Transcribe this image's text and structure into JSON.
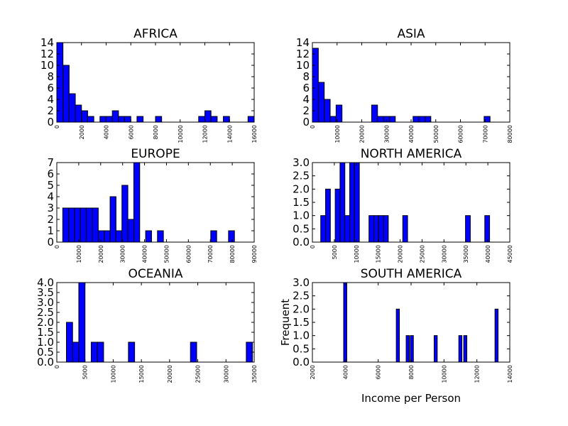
{
  "colors": {
    "bar": "#0000ff",
    "edge": "#000000",
    "background": "#ffffff"
  },
  "chart_data": [
    {
      "type": "bar",
      "title": "AFRICA",
      "xlim": [
        0,
        16000
      ],
      "ylim": [
        0,
        14
      ],
      "xticks": [
        0,
        2000,
        4000,
        6000,
        8000,
        10000,
        12000,
        14000,
        16000
      ],
      "yticks": [
        0,
        2,
        4,
        6,
        8,
        10,
        12,
        14
      ],
      "bin_width": 500,
      "bins": [
        [
          0,
          14
        ],
        [
          500,
          10
        ],
        [
          1000,
          5
        ],
        [
          1500,
          3
        ],
        [
          2000,
          2
        ],
        [
          2500,
          1
        ],
        [
          3500,
          1
        ],
        [
          4000,
          1
        ],
        [
          4500,
          2
        ],
        [
          5000,
          1
        ],
        [
          5500,
          1
        ],
        [
          6500,
          1
        ],
        [
          8000,
          1
        ],
        [
          11500,
          1
        ],
        [
          12000,
          2
        ],
        [
          12500,
          1
        ],
        [
          13500,
          1
        ],
        [
          15500,
          1
        ]
      ],
      "xlabel": "",
      "ylabel": "",
      "grid": false
    },
    {
      "type": "bar",
      "title": "ASIA",
      "xlim": [
        0,
        80000
      ],
      "ylim": [
        0,
        14
      ],
      "xticks": [
        0,
        10000,
        20000,
        30000,
        40000,
        50000,
        60000,
        70000,
        80000
      ],
      "yticks": [
        0,
        2,
        4,
        6,
        8,
        10,
        12,
        14
      ],
      "bin_width": 2400,
      "bins": [
        [
          0,
          13
        ],
        [
          2400,
          7
        ],
        [
          4800,
          4
        ],
        [
          7200,
          1
        ],
        [
          9600,
          3
        ],
        [
          24000,
          3
        ],
        [
          26400,
          1
        ],
        [
          28800,
          1
        ],
        [
          31200,
          1
        ],
        [
          40800,
          1
        ],
        [
          43200,
          1
        ],
        [
          45600,
          1
        ],
        [
          69600,
          1
        ]
      ],
      "xlabel": "",
      "ylabel": "",
      "grid": false
    },
    {
      "type": "bar",
      "title": "EUROPE",
      "xlim": [
        0,
        90000
      ],
      "ylim": [
        0,
        7
      ],
      "xticks": [
        0,
        10000,
        20000,
        30000,
        40000,
        50000,
        60000,
        70000,
        80000,
        90000
      ],
      "yticks": [
        0,
        1,
        2,
        3,
        4,
        5,
        6,
        7
      ],
      "bin_width": 2700,
      "bins": [
        [
          2700,
          3
        ],
        [
          5400,
          3
        ],
        [
          8100,
          3
        ],
        [
          10800,
          3
        ],
        [
          13500,
          3
        ],
        [
          16200,
          3
        ],
        [
          18900,
          1
        ],
        [
          21600,
          1
        ],
        [
          24300,
          4
        ],
        [
          27000,
          1
        ],
        [
          29700,
          5
        ],
        [
          32400,
          2
        ],
        [
          35100,
          7
        ],
        [
          40500,
          1
        ],
        [
          45900,
          1
        ],
        [
          70200,
          1
        ],
        [
          78300,
          1
        ]
      ],
      "xlabel": "",
      "ylabel": "",
      "grid": false
    },
    {
      "type": "bar",
      "title": "NORTH AMERICA",
      "xlim": [
        0,
        45000
      ],
      "ylim": [
        0,
        3
      ],
      "xticks": [
        0,
        5000,
        10000,
        15000,
        20000,
        25000,
        30000,
        35000,
        40000,
        45000
      ],
      "yticks": [
        0,
        0.5,
        1.0,
        1.5,
        2.0,
        2.5,
        3.0
      ],
      "bin_width": 1100,
      "bins": [
        [
          1900,
          1
        ],
        [
          3000,
          2
        ],
        [
          5200,
          2
        ],
        [
          6300,
          3
        ],
        [
          7400,
          1
        ],
        [
          8500,
          3
        ],
        [
          9600,
          3
        ],
        [
          12900,
          1
        ],
        [
          14000,
          1
        ],
        [
          15100,
          1
        ],
        [
          16200,
          1
        ],
        [
          20600,
          1
        ],
        [
          34900,
          1
        ],
        [
          39300,
          1
        ]
      ],
      "xlabel": "",
      "ylabel": "",
      "grid": false
    },
    {
      "type": "bar",
      "title": "OCEANIA",
      "xlim": [
        0,
        35000
      ],
      "ylim": [
        0,
        4
      ],
      "xticks": [
        0,
        5000,
        10000,
        15000,
        20000,
        25000,
        30000,
        35000
      ],
      "yticks": [
        0,
        0.5,
        1.0,
        1.5,
        2.0,
        2.5,
        3.0,
        3.5,
        4.0
      ],
      "bin_width": 1100,
      "bins": [
        [
          1700,
          2
        ],
        [
          2800,
          1
        ],
        [
          3900,
          4
        ],
        [
          6100,
          1
        ],
        [
          7200,
          1
        ],
        [
          12700,
          1
        ],
        [
          23700,
          1
        ],
        [
          33600,
          1
        ]
      ],
      "xlabel": "",
      "ylabel": "",
      "grid": false
    },
    {
      "type": "bar",
      "title": "SOUTH AMERICA",
      "xlim": [
        2000,
        14000
      ],
      "ylim": [
        0,
        3
      ],
      "xticks": [
        2000,
        4000,
        6000,
        8000,
        10000,
        12000,
        14000
      ],
      "yticks": [
        0,
        0.5,
        1.0,
        1.5,
        2.0,
        2.5,
        3.0
      ],
      "bin_width": 190,
      "bins": [
        [
          3900,
          3
        ],
        [
          7100,
          2
        ],
        [
          7700,
          1
        ],
        [
          7950,
          1
        ],
        [
          9400,
          1
        ],
        [
          10900,
          1
        ],
        [
          11200,
          1
        ],
        [
          13100,
          2
        ]
      ],
      "xlabel": "Income per Person",
      "ylabel": "Frequent",
      "grid": false
    }
  ]
}
